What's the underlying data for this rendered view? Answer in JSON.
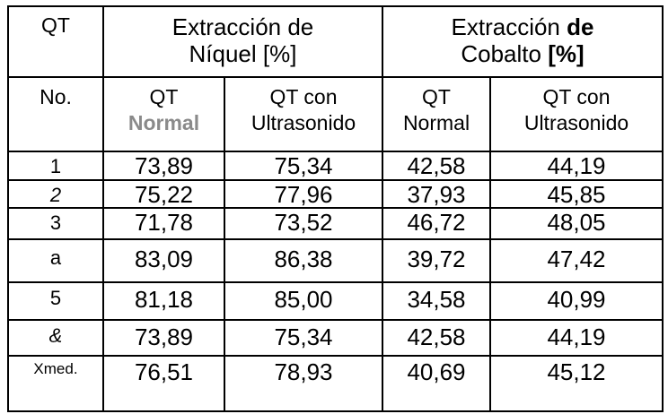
{
  "colors": {
    "text": "#000000",
    "gray_label": "#8a8a8a",
    "border": "#000000",
    "background": "#ffffff"
  },
  "table": {
    "header_row1": {
      "qt_label": "QT",
      "nickel": {
        "line1": "Extracción de",
        "line2": "Níquel [%]"
      },
      "cobalt": {
        "line1_regular": "Extracción",
        "line1_bold": "de",
        "line2_regular": "Cobalto",
        "line2_bold": "[%]"
      }
    },
    "header_row2": {
      "no_label": "No.",
      "ni_normal": {
        "line1": "QT",
        "line2": "Normal"
      },
      "ni_ultra": {
        "line1": "QT con",
        "line2": "Ultrasonido"
      },
      "co_normal": {
        "line1": "QT",
        "line2": "Normal"
      },
      "co_ultra": {
        "line1": "QT con",
        "line2": "Ultrasonido"
      }
    },
    "rows": [
      {
        "label": "1",
        "label_style": "normal",
        "ni_normal": "73,89",
        "ni_ultra": "75,34",
        "co_normal": "42,58",
        "co_ultra": "44,19"
      },
      {
        "label": "2",
        "label_style": "italic",
        "ni_normal": "75,22",
        "ni_ultra": "77,96",
        "co_normal": "37,93",
        "co_ultra": "45,85"
      },
      {
        "label": "3",
        "label_style": "normal",
        "ni_normal": "71,78",
        "ni_ultra": "73,52",
        "co_normal": "46,72",
        "co_ultra": "48,05"
      },
      {
        "label": "a",
        "label_style": "normal",
        "ni_normal": "83,09",
        "ni_ultra": "86,38",
        "co_normal": "39,72",
        "co_ultra": "47,42"
      },
      {
        "label": "5",
        "label_style": "normal",
        "ni_normal": "81,18",
        "ni_ultra": "85,00",
        "co_normal": "34,58",
        "co_ultra": "40,99"
      },
      {
        "label": "&",
        "label_style": "bold-italic",
        "ni_normal": "73,89",
        "ni_ultra": "75,34",
        "co_normal": "42,58",
        "co_ultra": "44,19"
      },
      {
        "label": "Xmed.",
        "label_style": "bold-small",
        "ni_normal": "76,51",
        "ni_ultra": "78,93",
        "co_normal": "40,69",
        "co_ultra": "45,12"
      }
    ]
  }
}
